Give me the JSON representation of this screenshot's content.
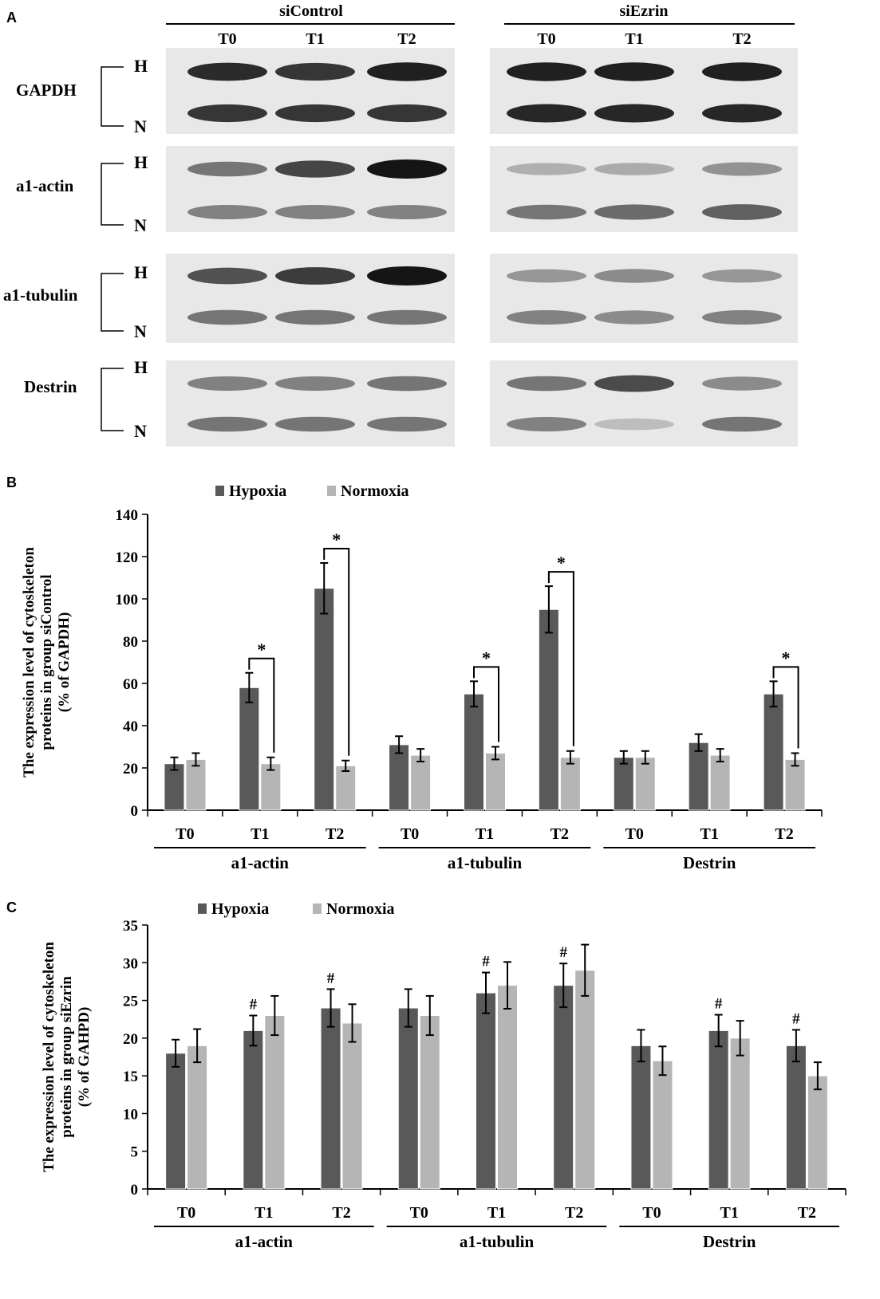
{
  "panel_a": {
    "letter": "A",
    "groups": [
      "siControl",
      "siEzrin"
    ],
    "timepoints": [
      "T0",
      "T1",
      "T2"
    ],
    "blots": [
      {
        "protein": "GAPDH",
        "rows": [
          "H",
          "N"
        ],
        "intensity": {
          "siControl": {
            "H": [
              0.9,
              0.85,
              0.95
            ],
            "N": [
              0.85,
              0.85,
              0.85
            ]
          },
          "siEzrin": {
            "H": [
              0.95,
              0.95,
              0.95
            ],
            "N": [
              0.92,
              0.92,
              0.92
            ]
          }
        }
      },
      {
        "protein": "a1-actin",
        "rows": [
          "H",
          "N"
        ],
        "intensity": {
          "siControl": {
            "H": [
              0.55,
              0.78,
              1.0
            ],
            "N": [
              0.5,
              0.5,
              0.5
            ]
          },
          "siEzrin": {
            "H": [
              0.28,
              0.3,
              0.42
            ],
            "N": [
              0.55,
              0.6,
              0.65
            ]
          }
        }
      },
      {
        "protein": "a1-tubulin",
        "rows": [
          "H",
          "N"
        ],
        "intensity": {
          "siControl": {
            "H": [
              0.72,
              0.82,
              1.0
            ],
            "N": [
              0.55,
              0.55,
              0.55
            ]
          },
          "siEzrin": {
            "H": [
              0.4,
              0.45,
              0.4
            ],
            "N": [
              0.5,
              0.45,
              0.5
            ]
          }
        }
      },
      {
        "protein": "Destrin",
        "rows": [
          "H",
          "N"
        ],
        "intensity": {
          "siControl": {
            "H": [
              0.5,
              0.5,
              0.55
            ],
            "N": [
              0.55,
              0.55,
              0.55
            ]
          },
          "siEzrin": {
            "H": [
              0.55,
              0.75,
              0.45
            ],
            "N": [
              0.5,
              0.22,
              0.55
            ]
          }
        }
      }
    ]
  },
  "chart_data": [
    {
      "panel": "B",
      "type": "bar",
      "ylabel_lines": [
        "The expression level of cytoskeleton",
        "proteins in group siControl",
        "(% of GAPDH)"
      ],
      "ylim": [
        0,
        140
      ],
      "yticks": [
        0,
        20,
        40,
        60,
        80,
        100,
        120,
        140
      ],
      "groups": [
        "a1-actin",
        "a1-tubulin",
        "Destrin"
      ],
      "categories": [
        "T0",
        "T1",
        "T2",
        "T0",
        "T1",
        "T2",
        "T0",
        "T1",
        "T2"
      ],
      "legend_position": "top",
      "series": [
        {
          "name": "Hypoxia",
          "color": "#595959",
          "values": [
            22,
            58,
            105,
            31,
            55,
            95,
            25,
            32,
            55
          ],
          "errors": [
            3,
            7,
            12,
            4,
            6,
            11,
            3,
            4,
            6
          ]
        },
        {
          "name": "Normoxia",
          "color": "#b5b5b5",
          "values": [
            24,
            22,
            21,
            26,
            27,
            25,
            25,
            26,
            24
          ],
          "errors": [
            3,
            3,
            2.5,
            3,
            3,
            3,
            3,
            3,
            3
          ]
        }
      ],
      "significance": [
        {
          "index": 1,
          "marker": "*"
        },
        {
          "index": 2,
          "marker": "*"
        },
        {
          "index": 4,
          "marker": "*"
        },
        {
          "index": 5,
          "marker": "*"
        },
        {
          "index": 8,
          "marker": "*"
        }
      ]
    },
    {
      "panel": "C",
      "type": "bar",
      "ylabel_lines": [
        "The expression level of cytoskeleton",
        "proteins in group siEzrin",
        "(% of GAHPD)"
      ],
      "ylim": [
        0,
        35
      ],
      "yticks": [
        0,
        5,
        10,
        15,
        20,
        25,
        30,
        35
      ],
      "groups": [
        "a1-actin",
        "a1-tubulin",
        "Destrin"
      ],
      "categories": [
        "T0",
        "T1",
        "T2",
        "T0",
        "T1",
        "T2",
        "T0",
        "T1",
        "T2"
      ],
      "legend_position": "top",
      "series": [
        {
          "name": "Hypoxia",
          "color": "#595959",
          "values": [
            18,
            21,
            24,
            24,
            26,
            27,
            19,
            21,
            19
          ],
          "errors": [
            1.8,
            2,
            2.5,
            2.5,
            2.7,
            2.9,
            2.1,
            2.1,
            2.1
          ]
        },
        {
          "name": "Normoxia",
          "color": "#b5b5b5",
          "values": [
            19,
            23,
            22,
            23,
            27,
            29,
            17,
            20,
            15
          ],
          "errors": [
            2.2,
            2.6,
            2.5,
            2.6,
            3.1,
            3.4,
            1.9,
            2.3,
            1.8
          ]
        }
      ],
      "hash_marks": [
        1,
        2,
        4,
        5,
        7,
        8
      ],
      "hash_symbol": "#"
    }
  ]
}
